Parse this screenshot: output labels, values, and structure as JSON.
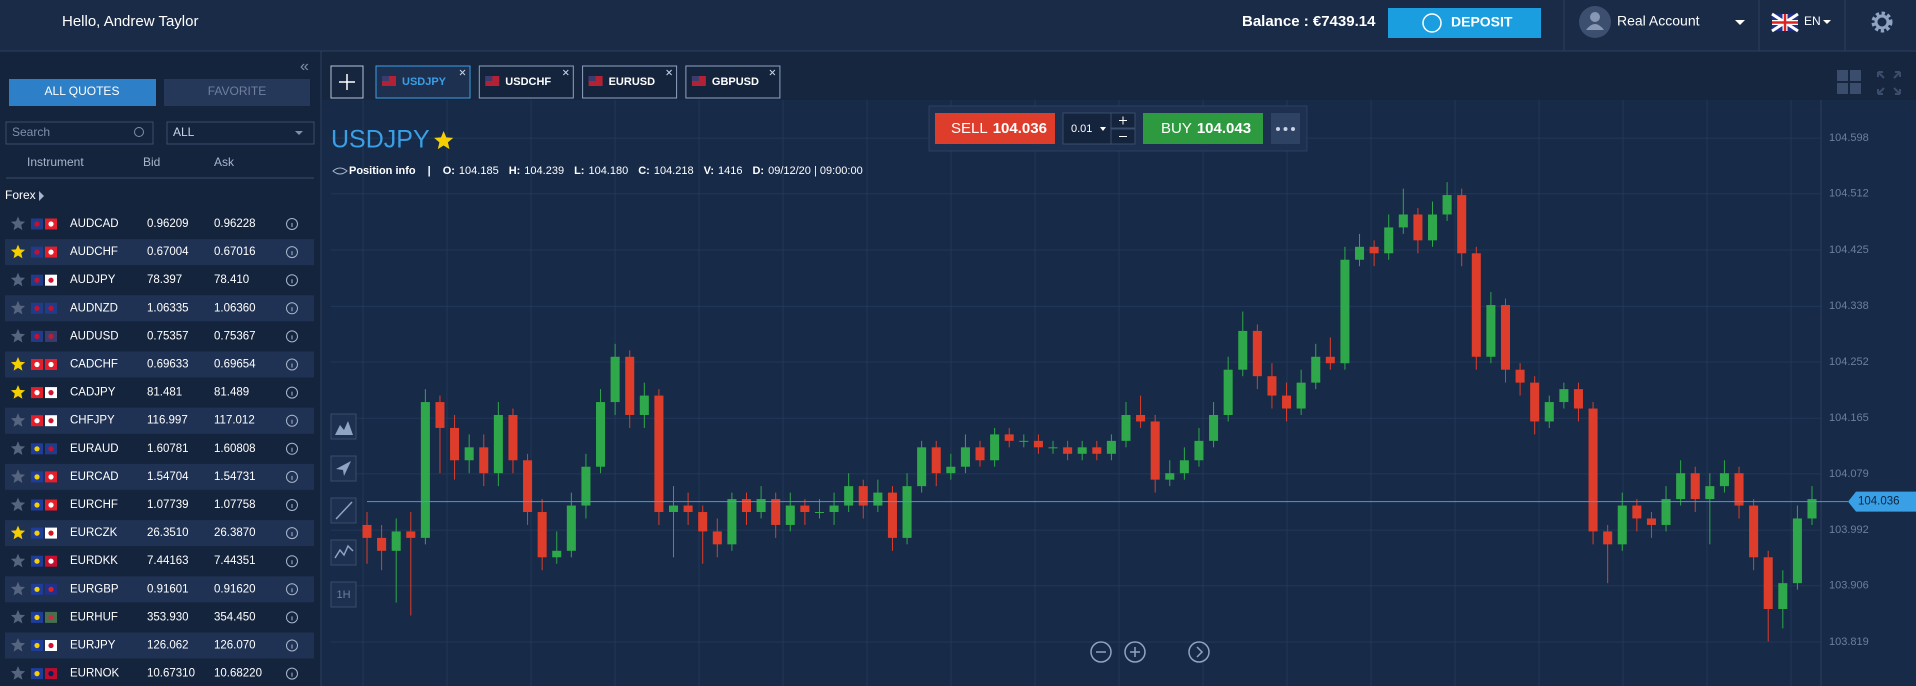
{
  "header": {
    "greeting": "Hello, Andrew Taylor",
    "balance": "Balance : €7439.14",
    "deposit": "DEPOSIT",
    "account": "Real Account",
    "language": "EN"
  },
  "sidebar": {
    "tabs": [
      "ALL QUOTES",
      "FAVORITE"
    ],
    "search": "Search",
    "filter": "ALL",
    "columns": [
      "Instrument",
      "Bid",
      "Ask"
    ],
    "group": "Forex",
    "quotes": [
      {
        "symbol": "AUDCAD",
        "bid": "0.96209",
        "ask": "0.96228",
        "favorite": false
      },
      {
        "symbol": "AUDCHF",
        "bid": "0.67004",
        "ask": "0.67016",
        "favorite": true
      },
      {
        "symbol": "AUDJPY",
        "bid": "78.397",
        "ask": "78.410",
        "favorite": false
      },
      {
        "symbol": "AUDNZD",
        "bid": "1.06335",
        "ask": "1.06360",
        "favorite": false
      },
      {
        "symbol": "AUDUSD",
        "bid": "0.75357",
        "ask": "0.75367",
        "favorite": false
      },
      {
        "symbol": "CADCHF",
        "bid": "0.69633",
        "ask": "0.69654",
        "favorite": true
      },
      {
        "symbol": "CADJPY",
        "bid": "81.481",
        "ask": "81.489",
        "favorite": true
      },
      {
        "symbol": "CHFJPY",
        "bid": "116.997",
        "ask": "117.012",
        "favorite": false
      },
      {
        "symbol": "EURAUD",
        "bid": "1.60781",
        "ask": "1.60808",
        "favorite": false
      },
      {
        "symbol": "EURCAD",
        "bid": "1.54704",
        "ask": "1.54731",
        "favorite": false
      },
      {
        "symbol": "EURCHF",
        "bid": "1.07739",
        "ask": "1.07758",
        "favorite": false
      },
      {
        "symbol": "EURCZK",
        "bid": "26.3510",
        "ask": "26.3870",
        "favorite": true
      },
      {
        "symbol": "EURDKK",
        "bid": "7.44163",
        "ask": "7.44351",
        "favorite": false
      },
      {
        "symbol": "EURGBP",
        "bid": "0.91601",
        "ask": "0.91620",
        "favorite": false
      },
      {
        "symbol": "EURHUF",
        "bid": "353.930",
        "ask": "354.450",
        "favorite": false
      },
      {
        "symbol": "EURJPY",
        "bid": "126.062",
        "ask": "126.070",
        "favorite": false
      },
      {
        "symbol": "EURNOK",
        "bid": "10.67310",
        "ask": "10.68220",
        "favorite": false
      }
    ]
  },
  "chart_tabs": [
    "USDJPY",
    "USDCHF",
    "EURUSD",
    "GBPUSD"
  ],
  "trade": {
    "sell_label": "SELL",
    "sell": 104.036,
    "amount": 0.01,
    "buy_label": "BUY",
    "buy": 104.043
  },
  "chart": {
    "type": "candlestick",
    "symbol": "USDJPY",
    "position_info": "Position info",
    "separator": "|",
    "info": [
      {
        "label": "O:",
        "value": "104.185"
      },
      {
        "label": "H:",
        "value": "104.239"
      },
      {
        "label": "L:",
        "value": "104.180"
      },
      {
        "label": "C:",
        "value": "104.218"
      },
      {
        "label": "V:",
        "value": "1416"
      },
      {
        "label": "D:",
        "value": "09/12/20 | 09:00:00"
      }
    ],
    "timeframe": "1H",
    "ylim": [
      103.751,
      104.657
    ],
    "yticks": [
      104.598,
      104.512,
      104.425,
      104.338,
      104.252,
      104.165,
      104.079,
      103.992,
      103.906,
      103.819
    ],
    "current_price": 104.036,
    "candles": [
      [
        104.0,
        104.02,
        103.94,
        103.98
      ],
      [
        103.98,
        104.0,
        103.93,
        103.96
      ],
      [
        103.96,
        104.01,
        103.88,
        103.99
      ],
      [
        103.99,
        104.02,
        103.86,
        103.98
      ],
      [
        103.98,
        104.21,
        103.97,
        104.19
      ],
      [
        104.19,
        104.2,
        104.08,
        104.15
      ],
      [
        104.15,
        104.17,
        104.07,
        104.1
      ],
      [
        104.1,
        104.14,
        104.08,
        104.12
      ],
      [
        104.12,
        104.14,
        104.06,
        104.08
      ],
      [
        104.08,
        104.19,
        104.06,
        104.17
      ],
      [
        104.17,
        104.18,
        104.08,
        104.1
      ],
      [
        104.1,
        104.11,
        104.0,
        104.02
      ],
      [
        104.02,
        104.04,
        103.93,
        103.95
      ],
      [
        103.95,
        103.99,
        103.94,
        103.96
      ],
      [
        103.96,
        104.05,
        103.95,
        104.03
      ],
      [
        104.03,
        104.11,
        104.01,
        104.09
      ],
      [
        104.09,
        104.21,
        104.08,
        104.19
      ],
      [
        104.19,
        104.28,
        104.17,
        104.26
      ],
      [
        104.26,
        104.27,
        104.15,
        104.17
      ],
      [
        104.17,
        104.22,
        104.15,
        104.2
      ],
      [
        104.2,
        104.21,
        104.0,
        104.02
      ],
      [
        104.02,
        104.06,
        103.95,
        104.03
      ],
      [
        104.03,
        104.05,
        104.0,
        104.02
      ],
      [
        104.02,
        104.03,
        103.94,
        103.99
      ],
      [
        103.99,
        104.01,
        103.95,
        103.97
      ],
      [
        103.97,
        104.05,
        103.96,
        104.04
      ],
      [
        104.04,
        104.05,
        104.0,
        104.02
      ],
      [
        104.02,
        104.06,
        104.01,
        104.04
      ],
      [
        104.04,
        104.05,
        103.98,
        104.0
      ],
      [
        104.0,
        104.05,
        103.99,
        104.03
      ],
      [
        104.03,
        104.04,
        104.0,
        104.02
      ],
      [
        104.02,
        104.04,
        104.01,
        104.02
      ],
      [
        104.02,
        104.05,
        104.0,
        104.03
      ],
      [
        104.03,
        104.08,
        104.02,
        104.06
      ],
      [
        104.06,
        104.07,
        104.01,
        104.03
      ],
      [
        104.03,
        104.07,
        104.02,
        104.05
      ],
      [
        104.05,
        104.06,
        103.96,
        103.98
      ],
      [
        103.98,
        104.08,
        103.97,
        104.06
      ],
      [
        104.06,
        104.13,
        104.05,
        104.12
      ],
      [
        104.12,
        104.13,
        104.06,
        104.08
      ],
      [
        104.08,
        104.11,
        104.07,
        104.09
      ],
      [
        104.09,
        104.14,
        104.08,
        104.12
      ],
      [
        104.12,
        104.13,
        104.09,
        104.1
      ],
      [
        104.1,
        104.15,
        104.09,
        104.14
      ],
      [
        104.14,
        104.15,
        104.12,
        104.13
      ],
      [
        104.13,
        104.14,
        104.12,
        104.13
      ],
      [
        104.13,
        104.14,
        104.11,
        104.12
      ],
      [
        104.12,
        104.13,
        104.11,
        104.12
      ],
      [
        104.12,
        104.13,
        104.1,
        104.11
      ],
      [
        104.11,
        104.13,
        104.1,
        104.12
      ],
      [
        104.12,
        104.13,
        104.1,
        104.11
      ],
      [
        104.11,
        104.14,
        104.1,
        104.13
      ],
      [
        104.13,
        104.19,
        104.12,
        104.17
      ],
      [
        104.17,
        104.2,
        104.15,
        104.16
      ],
      [
        104.16,
        104.17,
        104.05,
        104.07
      ],
      [
        104.07,
        104.1,
        104.06,
        104.08
      ],
      [
        104.08,
        104.12,
        104.07,
        104.1
      ],
      [
        104.1,
        104.15,
        104.09,
        104.13
      ],
      [
        104.13,
        104.19,
        104.12,
        104.17
      ],
      [
        104.17,
        104.26,
        104.16,
        104.24
      ],
      [
        104.24,
        104.33,
        104.23,
        104.3
      ],
      [
        104.3,
        104.31,
        104.21,
        104.23
      ],
      [
        104.23,
        104.25,
        104.18,
        104.2
      ],
      [
        104.2,
        104.22,
        104.16,
        104.18
      ],
      [
        104.18,
        104.24,
        104.17,
        104.22
      ],
      [
        104.22,
        104.28,
        104.21,
        104.26
      ],
      [
        104.26,
        104.29,
        104.24,
        104.25
      ],
      [
        104.25,
        104.43,
        104.24,
        104.41
      ],
      [
        104.41,
        104.45,
        104.4,
        104.43
      ],
      [
        104.43,
        104.44,
        104.4,
        104.42
      ],
      [
        104.42,
        104.48,
        104.41,
        104.46
      ],
      [
        104.46,
        104.52,
        104.45,
        104.48
      ],
      [
        104.48,
        104.49,
        104.42,
        104.44
      ],
      [
        104.44,
        104.5,
        104.43,
        104.48
      ],
      [
        104.48,
        104.53,
        104.47,
        104.51
      ],
      [
        104.51,
        104.52,
        104.4,
        104.42
      ],
      [
        104.42,
        104.43,
        104.24,
        104.26
      ],
      [
        104.26,
        104.36,
        104.25,
        104.34
      ],
      [
        104.34,
        104.35,
        104.22,
        104.24
      ],
      [
        104.24,
        104.25,
        104.2,
        104.22
      ],
      [
        104.22,
        104.23,
        104.14,
        104.16
      ],
      [
        104.16,
        104.2,
        104.15,
        104.19
      ],
      [
        104.19,
        104.22,
        104.18,
        104.21
      ],
      [
        104.21,
        104.22,
        104.16,
        104.18
      ],
      [
        104.18,
        104.19,
        103.97,
        103.99
      ],
      [
        103.99,
        104.0,
        103.91,
        103.97
      ],
      [
        103.97,
        104.05,
        103.96,
        104.03
      ],
      [
        104.03,
        104.04,
        103.99,
        104.01
      ],
      [
        104.01,
        104.02,
        103.98,
        104.0
      ],
      [
        104.0,
        104.06,
        103.99,
        104.04
      ],
      [
        104.04,
        104.1,
        104.03,
        104.08
      ],
      [
        104.08,
        104.09,
        104.02,
        104.04
      ],
      [
        104.04,
        104.08,
        103.97,
        104.06
      ],
      [
        104.06,
        104.1,
        104.05,
        104.08
      ],
      [
        104.08,
        104.09,
        104.01,
        104.03
      ],
      [
        104.03,
        104.04,
        103.93,
        103.95
      ],
      [
        103.95,
        103.96,
        103.82,
        103.87
      ],
      [
        103.87,
        103.93,
        103.84,
        103.91
      ],
      [
        103.91,
        104.03,
        103.9,
        104.01
      ],
      [
        104.01,
        104.06,
        104.0,
        104.04
      ]
    ]
  }
}
